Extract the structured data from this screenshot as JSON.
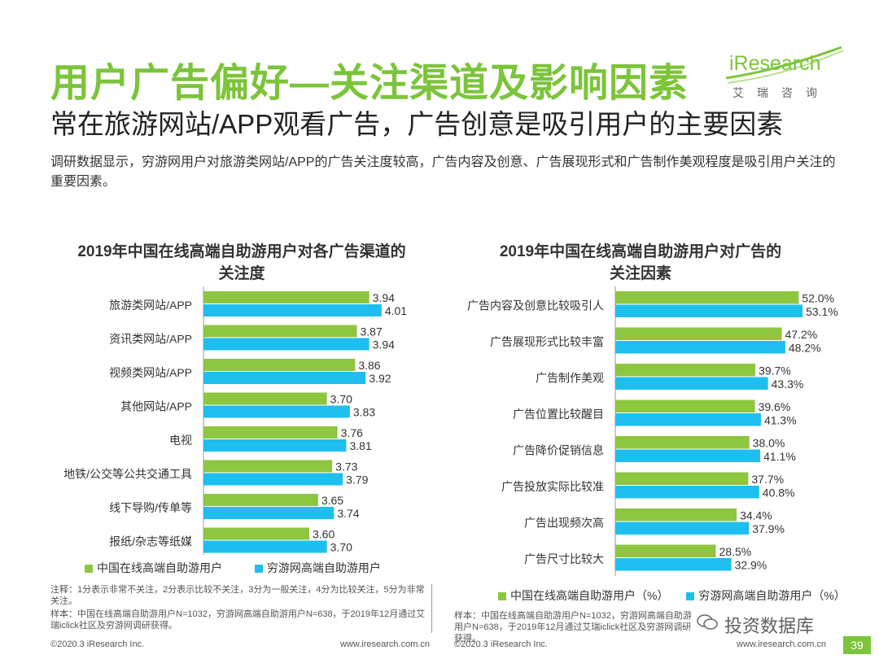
{
  "page": {
    "title": "用户广告偏好—关注渠道及影响因素",
    "subtitle": "常在旅游网站/APP观看广告，广告创意是吸引用户的主要因素",
    "description": "调研数据显示，穷游网用户对旅游类网站/APP的广告关注度较高，广告内容及创意、广告展现形式和广告制作美观程度是吸引用户关注的重要因素。",
    "logo": {
      "brand": "iResearch",
      "cn": "艾瑞咨询"
    },
    "footer_left_1": "©2020.3 iResearch Inc.",
    "footer_right_1": "www.iresearch.com.cn",
    "footer_left_2": "©2020.3 iResearch Inc.",
    "footer_right_2": "www.iresearch.com.cn",
    "page_number": "39",
    "watermark": "投资数据库",
    "colors": {
      "green": "#8dc63f",
      "blue": "#1ebfef",
      "title_green": "#7cc43a"
    }
  },
  "chart_data": [
    {
      "type": "bar",
      "orientation": "horizontal",
      "title": "2019年中国在线高端自助游用户对各广告渠道的关注度",
      "title_line1": "2019年中国在线高端自助游用户对各广告渠道的",
      "title_line2": "关注度",
      "categories": [
        "旅游类网站/APP",
        "资讯类网站/APP",
        "视频类网站/APP",
        "其他网站/APP",
        "电视",
        "地铁/公交等公共交通工具",
        "线下导购/传单等",
        "报纸/杂志等纸媒"
      ],
      "series": [
        {
          "name": "中国在线高端自助游用户",
          "values": [
            3.94,
            3.87,
            3.86,
            3.7,
            3.76,
            3.73,
            3.65,
            3.6
          ],
          "labels": [
            "3.94",
            "3.87",
            "3.86",
            "3.70",
            "3.76",
            "3.73",
            "3.65",
            "3.60"
          ]
        },
        {
          "name": "穷游网高端自助游用户",
          "values": [
            4.01,
            3.94,
            3.92,
            3.83,
            3.81,
            3.79,
            3.74,
            3.7
          ],
          "labels": [
            "4.01",
            "3.94",
            "3.92",
            "3.83",
            "3.81",
            "3.79",
            "3.74",
            "3.70"
          ]
        }
      ],
      "xlim": [
        3.0,
        4.2
      ],
      "legend": [
        "中国在线高端自助游用户",
        "穷游网高端自助游用户"
      ],
      "note": "注释：1分表示非常不关注，2分表示比较不关注，3分为一般关注，4分为比较关注，5分为非常关注。",
      "sample": "样本：中国在线高端自助游用户N=1032，穷游网高端自助游用户N=638，于2019年12月通过艾瑞iclick社区及穷游网调研获得。"
    },
    {
      "type": "bar",
      "orientation": "horizontal",
      "title": "2019年中国在线高端自助游用户对广告的关注因素",
      "title_line1": "2019年中国在线高端自助游用户对广告的",
      "title_line2": "关注因素",
      "categories": [
        "广告内容及创意比较吸引人",
        "广告展现形式比较丰富",
        "广告制作美观",
        "广告位置比较醒目",
        "广告降价促销信息",
        "广告投放实际比较准",
        "广告出现频次高",
        "广告尺寸比较大"
      ],
      "series": [
        {
          "name": "中国在线高端自助游用户（%）",
          "values": [
            52.0,
            47.2,
            39.7,
            39.6,
            38.0,
            37.7,
            34.4,
            28.5
          ],
          "labels": [
            "52.0%",
            "47.2%",
            "39.7%",
            "39.6%",
            "38.0%",
            "37.7%",
            "34.4%",
            "28.5%"
          ]
        },
        {
          "name": "穷游网高端自助游用户（%）",
          "values": [
            53.1,
            48.2,
            43.3,
            41.3,
            41.1,
            40.8,
            37.9,
            32.9
          ],
          "labels": [
            "53.1%",
            "48.2%",
            "43.3%",
            "41.3%",
            "41.1%",
            "40.8%",
            "37.9%",
            "32.9%"
          ]
        }
      ],
      "xlim": [
        0,
        60
      ],
      "legend": [
        "中国在线高端自助游用户（%）",
        "穷游网高端自助游用户（%）"
      ],
      "sample": "样本：中国在线高端自助游用户N=1032，穷游网高端自助游用户N=638，于2019年12月通过艾瑞iclick社区及穷游网调研获得。"
    }
  ]
}
